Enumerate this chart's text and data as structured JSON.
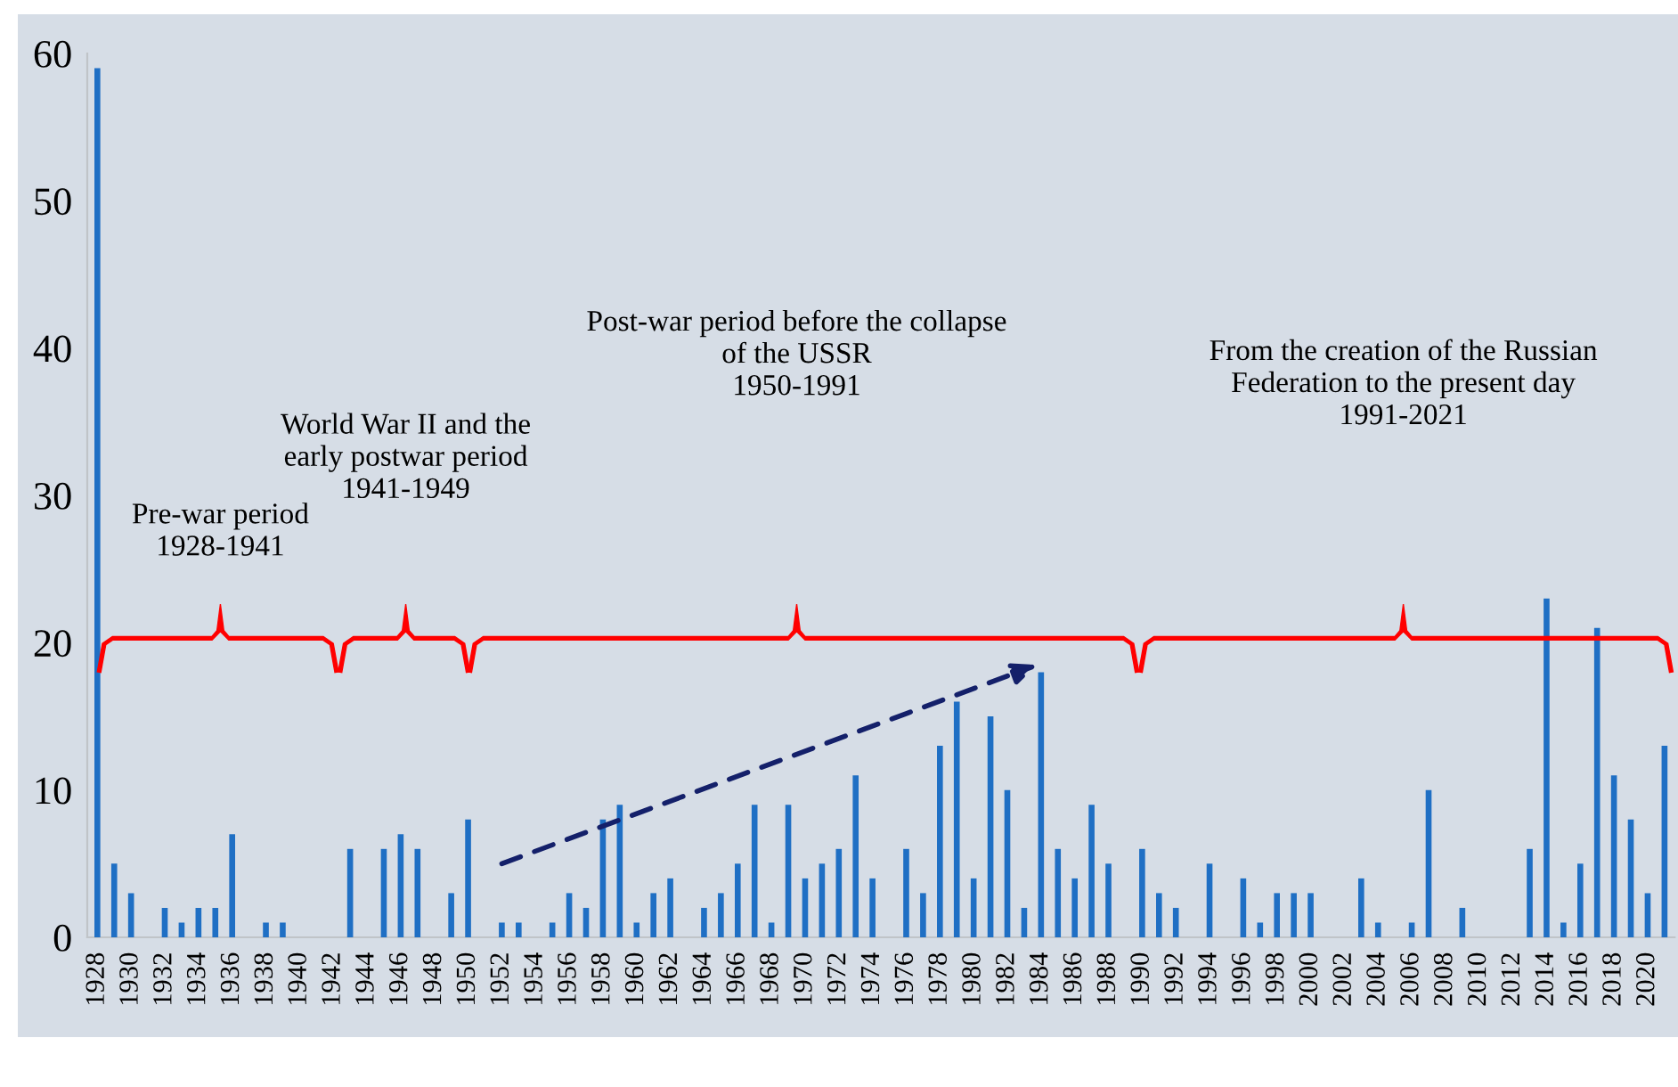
{
  "chart_data": {
    "type": "bar",
    "categories": [
      "1928",
      null,
      "1930",
      null,
      "1932",
      null,
      "1934",
      null,
      "1936",
      null,
      "1938",
      null,
      "1940",
      null,
      "1942",
      null,
      "1944",
      null,
      "1946",
      null,
      "1948",
      null,
      "1950",
      null,
      "1952",
      null,
      "1954",
      null,
      "1956",
      null,
      "1958",
      null,
      "1960",
      null,
      "1962",
      null,
      "1964",
      null,
      "1966",
      null,
      "1968",
      null,
      "1970",
      null,
      "1972",
      null,
      "1974",
      null,
      "1976",
      null,
      "1978",
      null,
      "1980",
      null,
      "1982",
      null,
      "1984",
      null,
      "1986",
      null,
      "1988",
      null,
      "1990",
      null,
      "1992",
      null,
      "1994",
      null,
      "1996",
      null,
      "1998",
      null,
      "2000",
      null,
      "2002",
      null,
      "2004",
      null,
      "2006",
      null,
      "2008",
      null,
      "2010",
      null,
      "2012",
      null,
      "2014",
      null,
      "2016",
      null,
      "2018",
      null,
      "2020",
      null
    ],
    "values": [
      59,
      5,
      3,
      0,
      2,
      1,
      2,
      2,
      7,
      0,
      1,
      1,
      0,
      0,
      0,
      6,
      0,
      6,
      7,
      6,
      0,
      3,
      8,
      0,
      1,
      1,
      0,
      1,
      3,
      2,
      8,
      9,
      1,
      3,
      4,
      0,
      2,
      3,
      5,
      9,
      1,
      9,
      4,
      5,
      6,
      11,
      4,
      0,
      6,
      3,
      13,
      16,
      4,
      15,
      10,
      2,
      18,
      6,
      4,
      9,
      5,
      0,
      6,
      3,
      2,
      0,
      5,
      0,
      4,
      1,
      3,
      3,
      3,
      0,
      0,
      4,
      1,
      0,
      1,
      10,
      0,
      2,
      0,
      0,
      0,
      6,
      23,
      1,
      5,
      21,
      11,
      8,
      3,
      13
    ],
    "color": "#1f6fc4",
    "ylim": [
      0,
      60
    ],
    "yticks": [
      0,
      10,
      20,
      30,
      40,
      50,
      60
    ],
    "annotations": [
      "Pre-war period\n1928-1941",
      "World War II and the\nearly postwar period\n1941-1949",
      "Post-war period before the collapse\nof the USSR\n1950-1991",
      "From the creation of the Russian\nFederation to the present day\n1991-2021"
    ]
  }
}
